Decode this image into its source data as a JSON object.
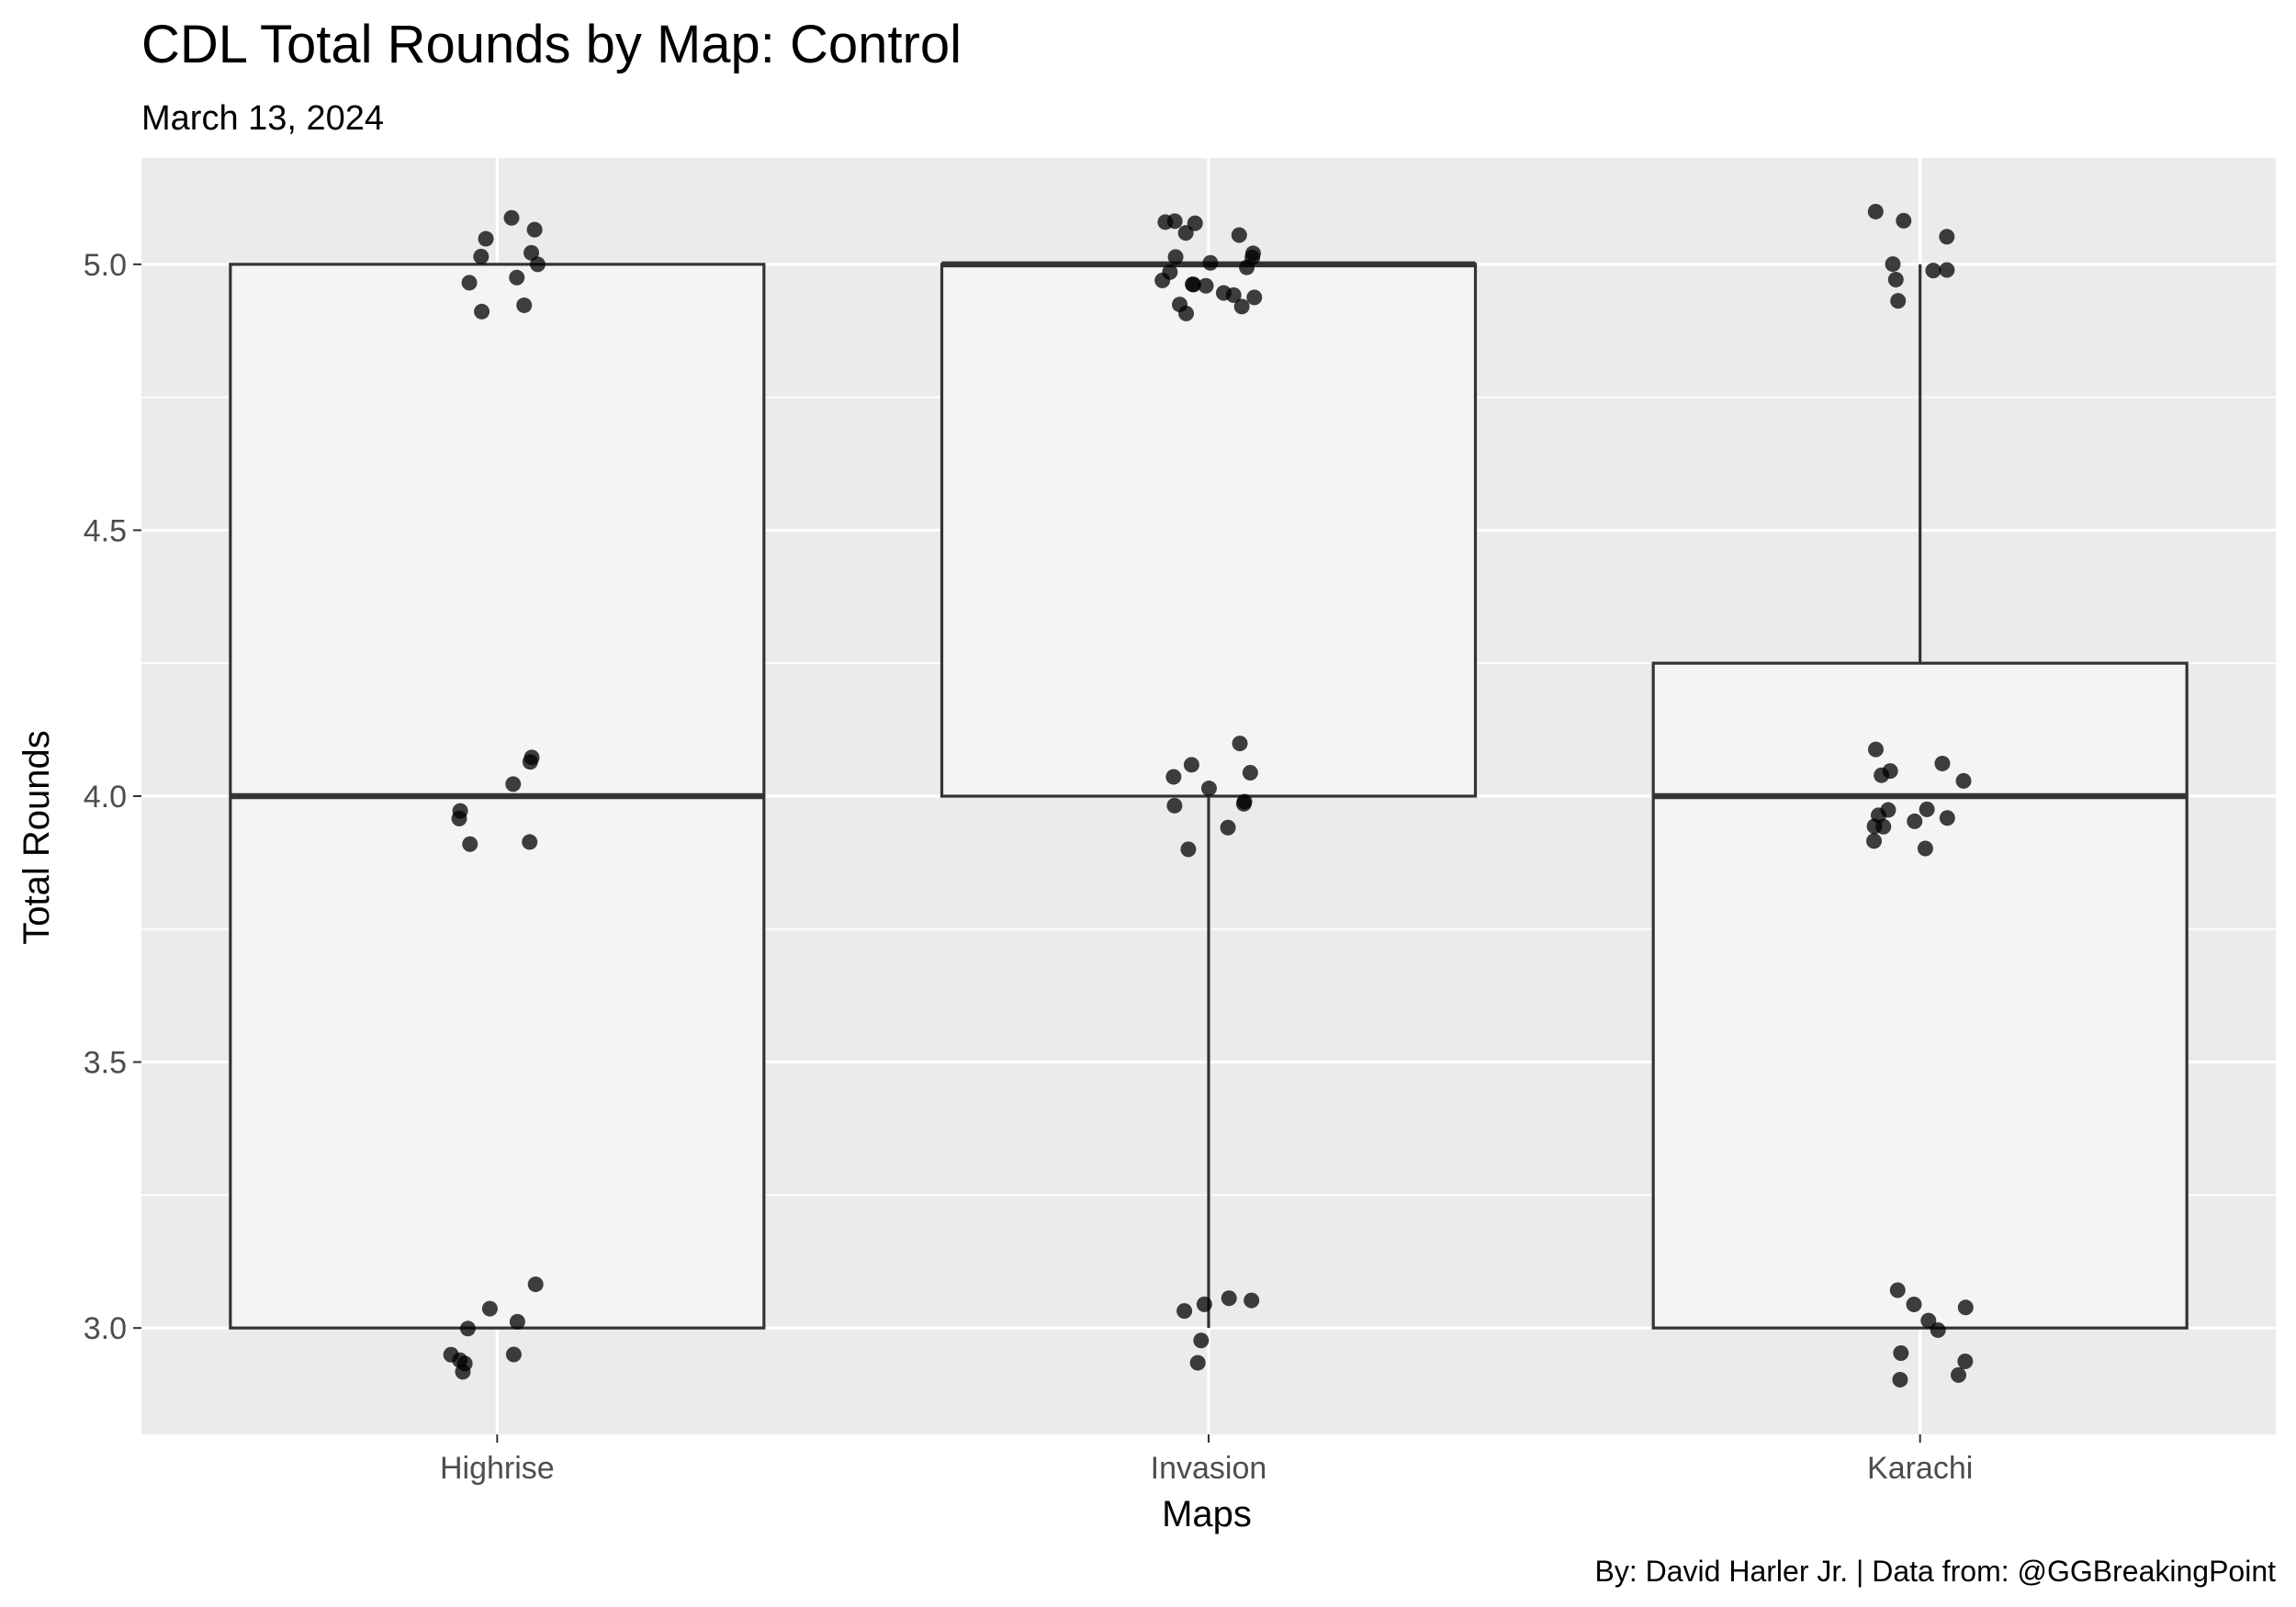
{
  "chart_data": {
    "type": "boxplot",
    "title": "CDL Total Rounds by Map: Control",
    "subtitle": "March 13, 2024",
    "xlabel": "Maps",
    "ylabel": "Total Rounds",
    "caption": "By: David Harler Jr. | Data from: @GGBreakingPoint",
    "categories": [
      "Highrise",
      "Invasion",
      "Karachi"
    ],
    "ylim": [
      2.8,
      5.2
    ],
    "yticks": [
      3.0,
      3.5,
      4.0,
      4.5,
      5.0
    ],
    "ytick_labels": [
      "3.0",
      "3.5",
      "4.0",
      "4.5",
      "5.0"
    ],
    "grid": true,
    "legend": "none",
    "colors": {
      "panel": "#ebebeb",
      "grid": "#ffffff",
      "box_fill": "#f4f4f4",
      "box_line": "#333333",
      "point": "#000000"
    },
    "boxes": [
      {
        "category": "Highrise",
        "min": 3,
        "q1": 3,
        "median": 4,
        "q3": 5,
        "max": 5
      },
      {
        "category": "Invasion",
        "min": 3,
        "q1": 4,
        "median": 5,
        "q3": 5,
        "max": 5
      },
      {
        "category": "Karachi",
        "min": 3,
        "q1": 3,
        "median": 4,
        "q3": 4.25,
        "max": 5
      }
    ],
    "points": [
      {
        "category": "Highrise",
        "value": 5,
        "count": 10
      },
      {
        "category": "Highrise",
        "value": 4,
        "count": 7
      },
      {
        "category": "Highrise",
        "value": 3,
        "count": 9
      },
      {
        "category": "Invasion",
        "value": 5,
        "count": 21
      },
      {
        "category": "Invasion",
        "value": 4,
        "count": 10
      },
      {
        "category": "Invasion",
        "value": 3,
        "count": 6
      },
      {
        "category": "Karachi",
        "value": 5,
        "count": 8
      },
      {
        "category": "Karachi",
        "value": 4,
        "count": 14
      },
      {
        "category": "Karachi",
        "value": 3,
        "count": 9
      }
    ]
  }
}
